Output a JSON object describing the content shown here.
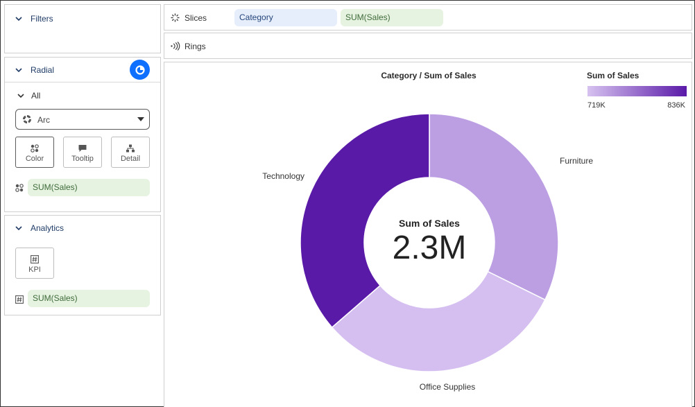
{
  "filters": {
    "header": "Filters"
  },
  "radial": {
    "header": "Radial",
    "section": "All",
    "mark_type": "Arc",
    "buttons": {
      "color": "Color",
      "tooltip": "Tooltip",
      "detail": "Detail"
    },
    "color_field": "SUM(Sales)"
  },
  "analytics": {
    "header": "Analytics",
    "kpi_label": "KPI",
    "kpi_field": "SUM(Sales)"
  },
  "shelves": {
    "slices": {
      "label": "Slices",
      "fields": [
        "Category",
        "SUM(Sales)"
      ]
    },
    "rings": {
      "label": "Rings"
    }
  },
  "colors": {
    "accent": "#0f6fff",
    "furniture": "#bc9fe3",
    "office_supplies": "#d5bff0",
    "technology": "#5a1aa8",
    "legend_low": "#d6c2f0",
    "legend_high": "#5a1aa8"
  },
  "chart_data": {
    "type": "pie",
    "variant": "donut",
    "title": "Category  /  Sum of Sales",
    "categories": [
      "Furniture",
      "Office Supplies",
      "Technology"
    ],
    "values": [
      742000,
      719000,
      836000
    ],
    "center_label": "Sum of Sales",
    "center_value": "2.3M",
    "legend": {
      "title": "Sum of Sales",
      "min_label": "719K",
      "max_label": "836K",
      "placement": "top-right"
    }
  }
}
